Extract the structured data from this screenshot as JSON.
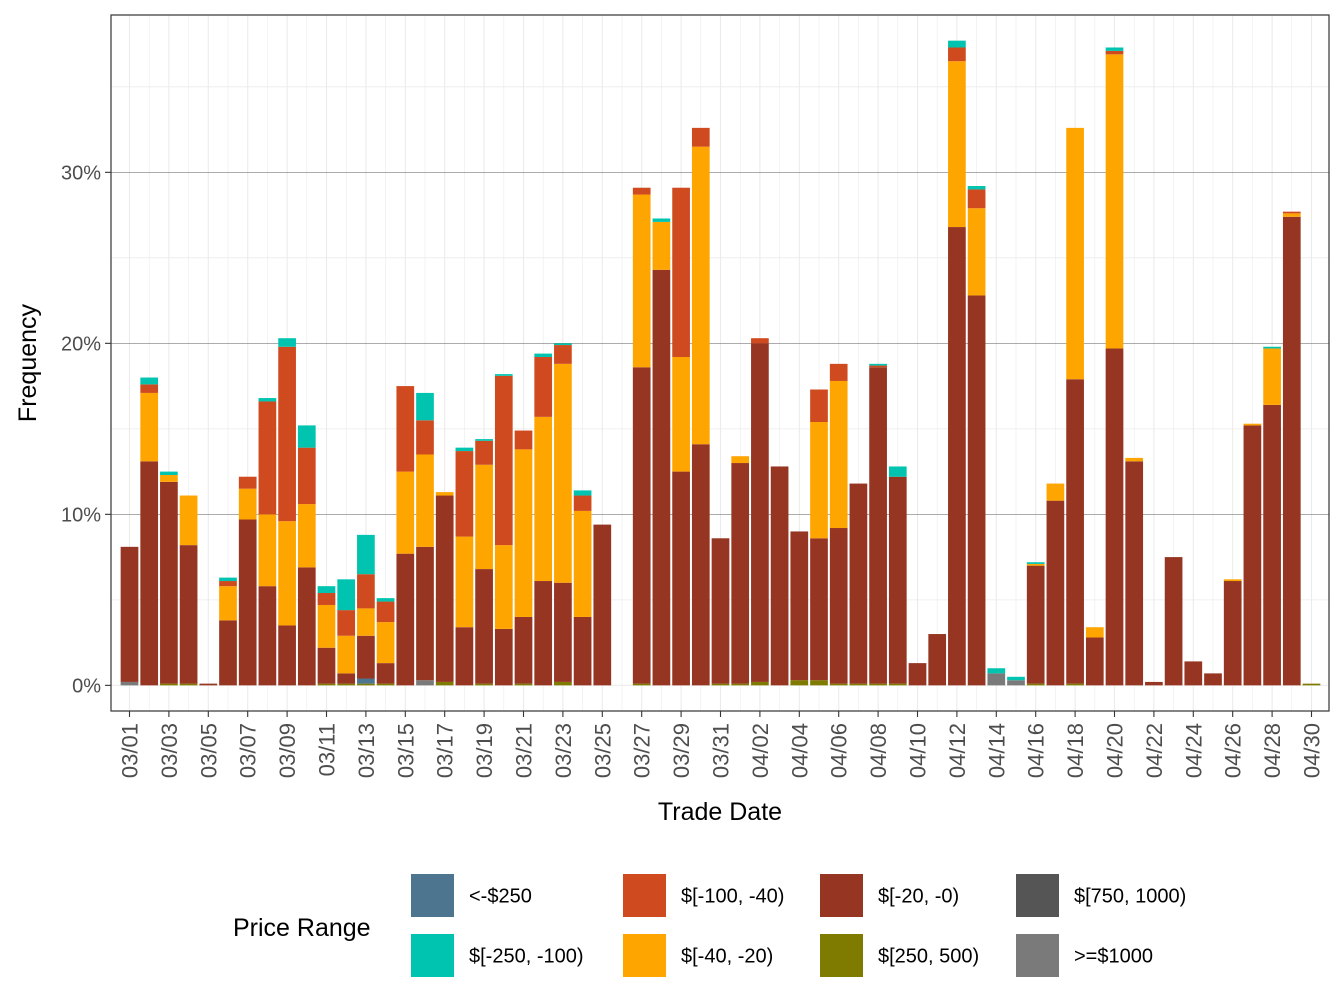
{
  "chart_data": {
    "type": "bar",
    "stacked": true,
    "xlabel": "Trade Date",
    "ylabel": "Frequency",
    "ylim": [
      -1.5,
      39.2
    ],
    "y_ticks": [
      0,
      10,
      20,
      30
    ],
    "y_tick_labels": [
      "0%",
      "10%",
      "20%",
      "30%"
    ],
    "y_minor_ticks": [
      5,
      15,
      25,
      35
    ],
    "grid": true,
    "legend_position": "bottom",
    "legend_title": "Price Range",
    "x_tick_labels": [
      "03/01",
      "03/03",
      "03/05",
      "03/07",
      "03/09",
      "03/11",
      "03/13",
      "03/15",
      "03/17",
      "03/19",
      "03/21",
      "03/23",
      "03/25",
      "03/27",
      "03/29",
      "03/31",
      "04/02",
      "04/04",
      "04/06",
      "04/08",
      "04/10",
      "04/12",
      "04/14",
      "04/16",
      "04/18",
      "04/20",
      "04/22",
      "04/24",
      "04/26",
      "04/28",
      "04/30"
    ],
    "x": [
      "03/01",
      "03/02",
      "03/03",
      "03/04",
      "03/05",
      "03/06",
      "03/07",
      "03/08",
      "03/09",
      "03/10",
      "03/11",
      "03/12",
      "03/13",
      "03/14",
      "03/15",
      "03/16",
      "03/17",
      "03/18",
      "03/19",
      "03/20",
      "03/21",
      "03/22",
      "03/23",
      "03/24",
      "03/25",
      "03/26",
      "03/27",
      "03/28",
      "03/29",
      "03/30",
      "03/31",
      "04/01",
      "04/02",
      "04/03",
      "04/04",
      "04/05",
      "04/06",
      "04/07",
      "04/08",
      "04/09",
      "04/10",
      "04/11",
      "04/12",
      "04/13",
      "04/14",
      "04/15",
      "04/16",
      "04/17",
      "04/18",
      "04/19",
      "04/20",
      "04/21",
      "04/22",
      "04/23",
      "04/24",
      "04/25",
      "04/26",
      "04/27",
      "04/28",
      "04/29",
      "04/30"
    ],
    "series": [
      {
        "name": ">=$1000",
        "color": "#7a7a7a",
        "values": [
          0.2,
          0,
          0,
          0,
          0,
          0,
          0,
          0,
          0,
          0,
          0,
          0,
          0,
          0,
          0,
          0.3,
          0,
          0,
          0,
          0,
          0,
          0,
          0,
          0,
          0,
          0,
          0,
          0,
          0,
          0,
          0,
          0,
          0,
          0,
          0,
          0,
          0,
          0,
          0,
          0,
          0,
          0,
          0,
          0,
          0.7,
          0.3,
          0,
          0,
          0,
          0,
          0,
          0,
          0,
          0,
          0,
          0,
          0,
          0,
          0,
          0,
          0
        ]
      },
      {
        "name": "$[750, 1000)",
        "color": "#555555",
        "values": [
          0,
          0,
          0,
          0,
          0,
          0,
          0,
          0,
          0,
          0,
          0,
          0,
          0,
          0,
          0,
          0,
          0,
          0,
          0,
          0,
          0,
          0,
          0,
          0,
          0,
          0,
          0,
          0,
          0,
          0,
          0,
          0,
          0,
          0,
          0,
          0,
          0,
          0,
          0,
          0,
          0,
          0,
          0,
          0,
          0,
          0,
          0,
          0,
          0,
          0,
          0,
          0,
          0,
          0,
          0,
          0,
          0,
          0,
          0,
          0,
          0
        ]
      },
      {
        "name": "$[250, 500)",
        "color": "#7f7a00",
        "values": [
          0,
          0,
          0.1,
          0.1,
          0,
          0,
          0,
          0,
          0,
          0,
          0.1,
          0.1,
          0.1,
          0.1,
          0,
          0,
          0.2,
          0,
          0.1,
          0,
          0.1,
          0,
          0.2,
          0,
          0,
          0,
          0.1,
          0,
          0,
          0,
          0.1,
          0.1,
          0.2,
          0,
          0.3,
          0.3,
          0.1,
          0.1,
          0.1,
          0.1,
          0,
          0,
          0,
          0,
          0,
          0,
          0.1,
          0,
          0.1,
          0,
          0,
          0,
          0,
          0,
          0,
          0,
          0,
          0,
          0,
          0,
          0.1
        ]
      },
      {
        "name": "<-$250",
        "color": "#4e7590",
        "values": [
          0,
          0,
          0,
          0,
          0,
          0,
          0,
          0,
          0,
          0,
          0,
          0,
          0.3,
          0,
          0,
          0,
          0,
          0,
          0,
          0,
          0,
          0,
          0,
          0,
          0,
          0,
          0,
          0,
          0,
          0,
          0,
          0,
          0,
          0,
          0,
          0,
          0,
          0,
          0,
          0,
          0,
          0,
          0,
          0,
          0,
          0,
          0,
          0,
          0,
          0,
          0,
          0,
          0,
          0,
          0,
          0,
          0,
          0,
          0,
          0,
          0
        ]
      },
      {
        "name": "$[-20, -0)",
        "color": "#963522",
        "values": [
          7.9,
          13.1,
          11.8,
          8.1,
          0.1,
          3.8,
          9.7,
          5.8,
          3.5,
          6.9,
          2.1,
          0.6,
          2.5,
          1.2,
          7.7,
          7.8,
          10.9,
          3.4,
          6.7,
          3.3,
          3.9,
          6.1,
          5.8,
          4.0,
          9.4,
          0,
          18.5,
          24.3,
          12.5,
          14.1,
          8.5,
          12.9,
          19.8,
          12.8,
          8.7,
          8.3,
          9.1,
          11.7,
          18.5,
          12.1,
          1.3,
          3.0,
          26.8,
          22.8,
          0,
          0,
          6.9,
          10.8,
          17.8,
          2.8,
          19.7,
          13.1,
          0.2,
          7.5,
          1.4,
          0.7,
          6.1,
          15.2,
          16.4,
          27.4,
          0
        ]
      },
      {
        "name": "$[-40, -20)",
        "color": "#ffa500",
        "values": [
          0,
          4.0,
          0.4,
          2.9,
          0,
          2.0,
          1.8,
          4.2,
          6.1,
          3.7,
          2.5,
          2.2,
          1.6,
          2.4,
          4.8,
          5.4,
          0.2,
          5.3,
          6.1,
          4.9,
          9.8,
          9.6,
          12.8,
          6.2,
          0,
          0,
          10.1,
          2.8,
          6.7,
          17.4,
          0,
          0.4,
          0,
          0,
          0,
          6.8,
          8.6,
          0,
          0,
          0,
          0,
          0,
          9.7,
          5.1,
          0,
          0,
          0.1,
          1.0,
          14.7,
          0.6,
          17.2,
          0.2,
          0,
          0,
          0,
          0,
          0.1,
          0.1,
          3.3,
          0.2,
          0
        ]
      },
      {
        "name": "$[-100, -40)",
        "color": "#d04a1f",
        "values": [
          0,
          0.5,
          0,
          0,
          0,
          0.3,
          0.7,
          6.6,
          10.2,
          3.3,
          0.7,
          1.5,
          2.0,
          1.2,
          5.0,
          2.0,
          0,
          5.0,
          1.4,
          9.9,
          1.1,
          3.5,
          1.1,
          0.9,
          0,
          0,
          0.4,
          0,
          9.9,
          1.1,
          0,
          0,
          0.3,
          0,
          0,
          1.9,
          1.0,
          0,
          0.1,
          0,
          0,
          0,
          0.8,
          1.1,
          0,
          0,
          0,
          0,
          0,
          0,
          0.2,
          0,
          0,
          0,
          0,
          0,
          0,
          0,
          0,
          0.1,
          0
        ]
      },
      {
        "name": "$[-250, -100)",
        "color": "#00c4b0",
        "values": [
          0,
          0.4,
          0.2,
          0,
          0,
          0.2,
          0,
          0.2,
          0.5,
          1.3,
          0.4,
          1.8,
          2.3,
          0.2,
          0,
          1.6,
          0,
          0.2,
          0.1,
          0.1,
          0,
          0.2,
          0.1,
          0.3,
          0,
          0,
          0,
          0.2,
          0,
          0,
          0,
          0,
          0,
          0,
          0,
          0,
          0,
          0,
          0.1,
          0.6,
          0,
          0,
          0.4,
          0.2,
          0.3,
          0.2,
          0.1,
          0,
          0,
          0,
          0.2,
          0,
          0,
          0,
          0,
          0,
          0,
          0,
          0.1,
          0,
          0
        ]
      }
    ],
    "legend_entries": [
      {
        "label": "<-$250",
        "color": "#4e7590"
      },
      {
        "label": "$[-250, -100)",
        "color": "#00c4b0"
      },
      {
        "label": "$[-100, -40)",
        "color": "#d04a1f"
      },
      {
        "label": "$[-40, -20)",
        "color": "#ffa500"
      },
      {
        "label": "$[-20, -0)",
        "color": "#963522"
      },
      {
        "label": "$[250, 500)",
        "color": "#7f7a00"
      },
      {
        "label": "$[750, 1000)",
        "color": "#555555"
      },
      {
        "label": ">=$1000",
        "color": "#7a7a7a"
      }
    ]
  }
}
